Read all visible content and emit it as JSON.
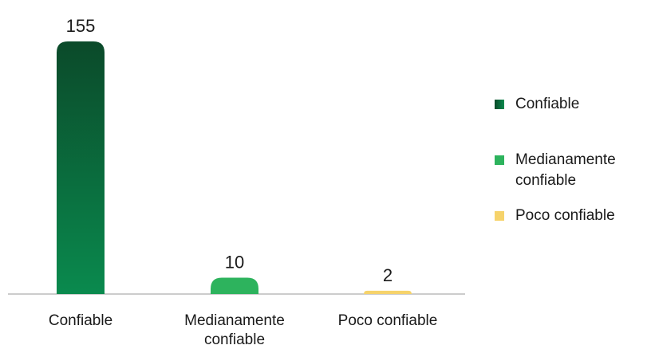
{
  "chart_data": {
    "type": "bar",
    "categories": [
      "Confiable",
      "Medianamente confiable",
      "Poco confiable"
    ],
    "values": [
      155,
      10,
      2
    ],
    "title": "",
    "xlabel": "",
    "ylabel": "",
    "ylim": [
      0,
      160
    ],
    "grid": false,
    "legend_position": "right",
    "colors": {
      "confiable_top": "#0b4a2a",
      "confiable_bottom": "#0a8a4e",
      "medianamente": "#2db35d",
      "poco": "#f6d36b"
    },
    "legend": [
      {
        "label": "Confiable",
        "color": "#0a6a3e"
      },
      {
        "label": "Medianamente confiable",
        "color": "#2db35d"
      },
      {
        "label": "Poco confiable",
        "color": "#f6d36b"
      }
    ]
  }
}
